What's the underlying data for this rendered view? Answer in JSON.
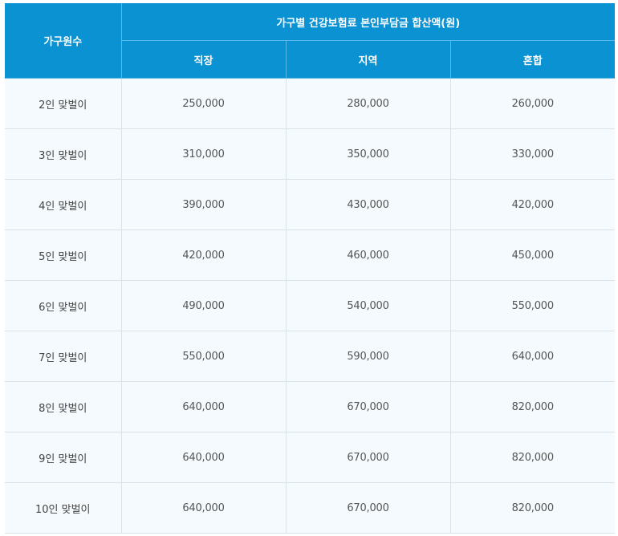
{
  "table": {
    "header": {
      "household_col": "가구원수",
      "group_title": "가구별 건강보험료 본인부담금 합산액(원)",
      "sub_columns": [
        "직장",
        "지역",
        "혼합"
      ]
    },
    "rows": [
      {
        "label": "2인 맞벌이",
        "values": [
          "250,000",
          "280,000",
          "260,000"
        ]
      },
      {
        "label": "3인 맞벌이",
        "values": [
          "310,000",
          "350,000",
          "330,000"
        ]
      },
      {
        "label": "4인 맞벌이",
        "values": [
          "390,000",
          "430,000",
          "420,000"
        ]
      },
      {
        "label": "5인 맞벌이",
        "values": [
          "420,000",
          "460,000",
          "450,000"
        ]
      },
      {
        "label": "6인 맞벌이",
        "values": [
          "490,000",
          "540,000",
          "550,000"
        ]
      },
      {
        "label": "7인 맞벌이",
        "values": [
          "550,000",
          "590,000",
          "640,000"
        ]
      },
      {
        "label": "8인 맞벌이",
        "values": [
          "640,000",
          "670,000",
          "820,000"
        ]
      },
      {
        "label": "9인 맞벌이",
        "values": [
          "640,000",
          "670,000",
          "820,000"
        ]
      },
      {
        "label": "10인 맞벌이",
        "values": [
          "640,000",
          "670,000",
          "820,000"
        ]
      }
    ]
  },
  "colors": {
    "header_bg": "#0a92d3",
    "body_bg": "#f4fafd",
    "grid": "#d9e3ea"
  }
}
